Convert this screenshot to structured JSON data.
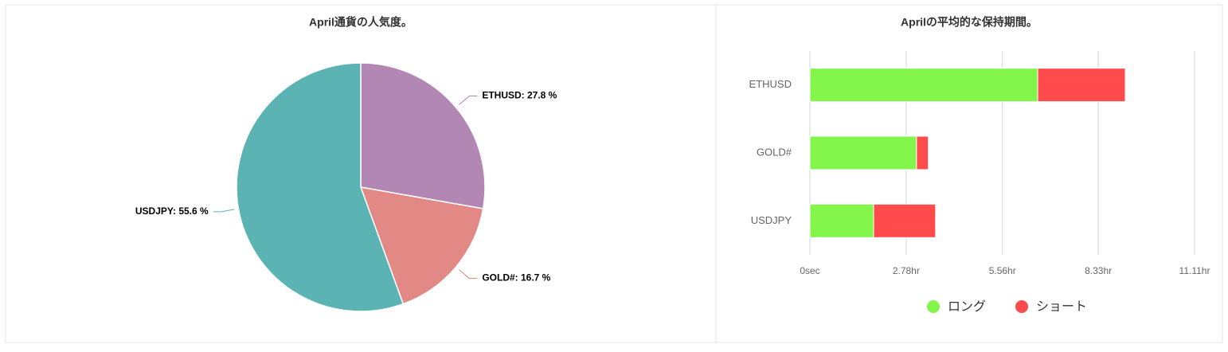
{
  "chart_data": [
    {
      "type": "pie",
      "title": "April通貨の人気度。",
      "categories": [
        "ETHUSD",
        "GOLD#",
        "USDJPY"
      ],
      "values": [
        27.8,
        16.7,
        55.6
      ],
      "value_labels": [
        "ETHUSD: 27.8 %",
        "GOLD#: 16.7 %",
        "USDJPY: 55.6 %"
      ],
      "colors": [
        "#b387b4",
        "#e28885",
        "#5bb3b4"
      ]
    },
    {
      "type": "stacked-bar-horizontal",
      "title": "Aprilの平均的な保持期間。",
      "categories": [
        "ETHUSD",
        "GOLD#",
        "USDJPY"
      ],
      "series": [
        {
          "name": "ロング",
          "color": "#84f54a",
          "values": [
            6.58,
            3.08,
            1.84
          ]
        },
        {
          "name": "ショート",
          "color": "#ff4b4b",
          "values": [
            2.53,
            0.34,
            1.79
          ]
        }
      ],
      "xlim": [
        0,
        11.11
      ],
      "xticks": [
        {
          "value": 0,
          "label": "0sec"
        },
        {
          "value": 2.78,
          "label": "2.78hr"
        },
        {
          "value": 5.56,
          "label": "5.56hr"
        },
        {
          "value": 8.33,
          "label": "8.33hr"
        },
        {
          "value": 11.11,
          "label": "11.11hr"
        }
      ],
      "grid": true,
      "legend": "bottom"
    }
  ]
}
